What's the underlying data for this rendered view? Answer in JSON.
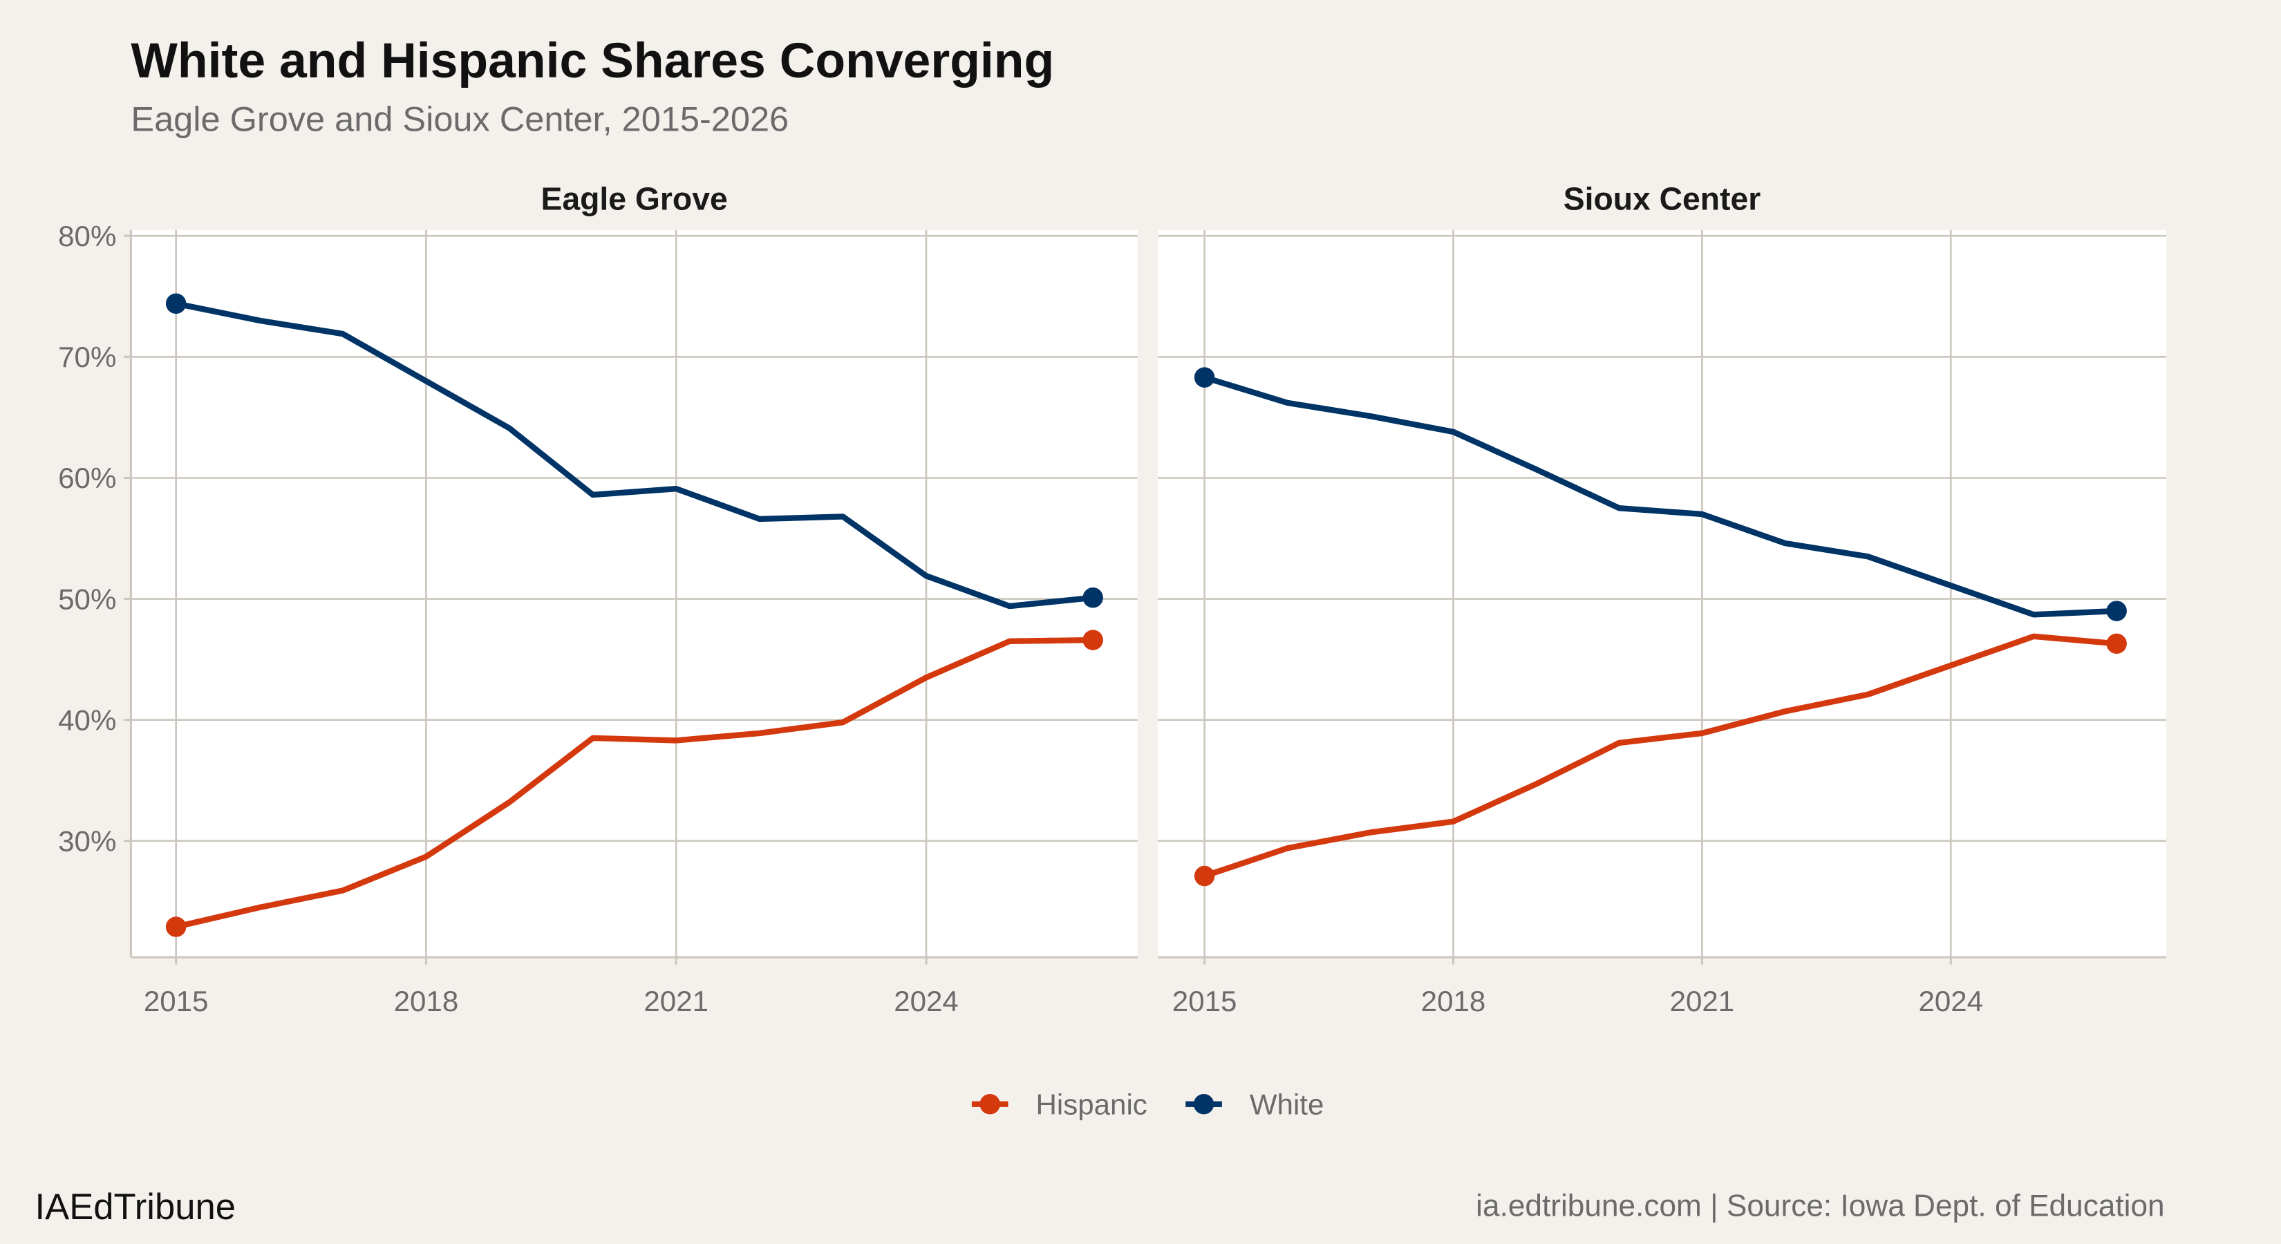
{
  "title": "White and Hispanic Shares Converging",
  "subtitle": "Eagle Grove and Sioux Center, 2015-2026",
  "brand": "IAEdTribune",
  "source": "ia.edtribune.com | Source: Iowa Dept. of Education",
  "colors": {
    "Hispanic": "#d4380d",
    "White": "#003366",
    "background": "#f4f1ec",
    "panel": "#ffffff",
    "grid": "#cdc8bf"
  },
  "chart_data": {
    "type": "line",
    "facets": [
      "Eagle Grove",
      "Sioux Center"
    ],
    "x": [
      2015,
      2016,
      2017,
      2018,
      2019,
      2020,
      2021,
      2022,
      2023,
      2024,
      2025,
      2026
    ],
    "x_ticks": [
      "2015",
      "2018",
      "2021",
      "2024"
    ],
    "y_ticks": [
      "30%",
      "40%",
      "50%",
      "60%",
      "70%",
      "80%"
    ],
    "ylim": [
      20,
      80
    ],
    "grid": true,
    "legend": {
      "position": "bottom",
      "entries": [
        "Hispanic",
        "White"
      ]
    },
    "endpoint_markers": true,
    "panels": [
      {
        "name": "Eagle Grove",
        "series": [
          {
            "name": "Hispanic",
            "values": [
              22.9,
              24.5,
              25.9,
              28.7,
              33.2,
              38.5,
              38.3,
              38.9,
              39.8,
              43.5,
              46.5,
              46.6
            ]
          },
          {
            "name": "White",
            "values": [
              74.4,
              73.0,
              71.9,
              68.0,
              64.1,
              58.6,
              59.1,
              56.6,
              56.8,
              51.9,
              49.4,
              50.1
            ]
          }
        ]
      },
      {
        "name": "Sioux Center",
        "series": [
          {
            "name": "Hispanic",
            "values": [
              27.1,
              29.4,
              30.7,
              31.6,
              34.7,
              38.1,
              38.9,
              40.7,
              42.1,
              44.5,
              46.9,
              46.3
            ]
          },
          {
            "name": "White",
            "values": [
              68.3,
              66.2,
              65.1,
              63.8,
              60.7,
              57.5,
              57.0,
              54.6,
              53.5,
              51.1,
              48.7,
              49.0
            ]
          }
        ]
      }
    ]
  }
}
